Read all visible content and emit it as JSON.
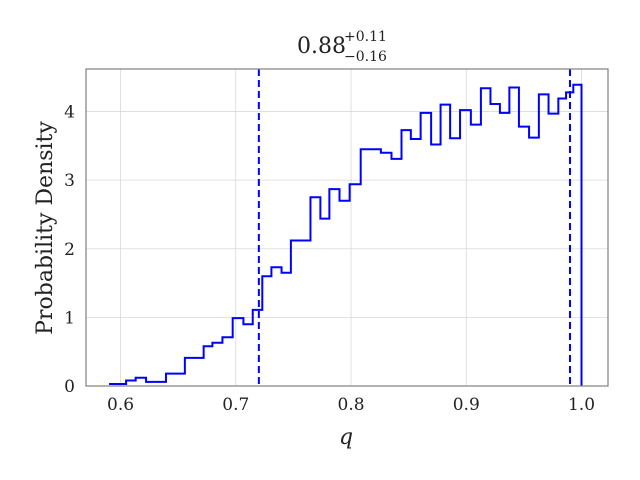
{
  "chart_data": {
    "type": "histogram",
    "title": {
      "median": "0.88",
      "plus": "+0.11",
      "minus": "−0.16"
    },
    "xlabel": "q",
    "ylabel": "Probability Density",
    "xlim": [
      0.57,
      1.023
    ],
    "ylim": [
      0,
      4.62
    ],
    "xticks": [
      0.6,
      0.7,
      0.8,
      0.9,
      1.0
    ],
    "xtick_labels": [
      "0.6",
      "0.7",
      "0.8",
      "0.9",
      "1.0"
    ],
    "yticks": [
      0,
      1,
      2,
      3,
      4
    ],
    "ytick_labels": [
      "0",
      "1",
      "2",
      "3",
      "4"
    ],
    "grid": true,
    "colors": {
      "series": "#0000ff",
      "grid": "#d9d9d9",
      "frame": "#808080"
    },
    "bin_edges": [
      0.59,
      0.6048,
      0.6131,
      0.6221,
      0.6394,
      0.6558,
      0.6721,
      0.6797,
      0.6884,
      0.6973,
      0.7066,
      0.7147,
      0.723,
      0.7309,
      0.7397,
      0.7478,
      0.7648,
      0.7734,
      0.7812,
      0.79,
      0.7988,
      0.8084,
      0.8259,
      0.8351,
      0.8438,
      0.8519,
      0.8604,
      0.8695,
      0.8777,
      0.886,
      0.8946,
      0.904,
      0.9127,
      0.921,
      0.9292,
      0.9374,
      0.9457,
      0.9545,
      0.963,
      0.9714,
      0.9799,
      0.9866,
      0.9929,
      1.0
    ],
    "densities": [
      0.03,
      0.08,
      0.12,
      0.06,
      0.18,
      0.41,
      0.58,
      0.63,
      0.71,
      0.99,
      0.9,
      1.11,
      1.6,
      1.73,
      1.65,
      2.12,
      2.75,
      2.44,
      2.87,
      2.7,
      2.94,
      3.45,
      3.4,
      3.31,
      3.73,
      3.6,
      3.98,
      3.52,
      4.1,
      3.61,
      4.02,
      3.81,
      4.34,
      4.11,
      3.98,
      4.35,
      3.78,
      3.62,
      4.25,
      3.97,
      4.19,
      4.28,
      4.39
    ],
    "lower_bound": 0.72,
    "upper_bound": 0.99,
    "max_line": 1.0
  }
}
